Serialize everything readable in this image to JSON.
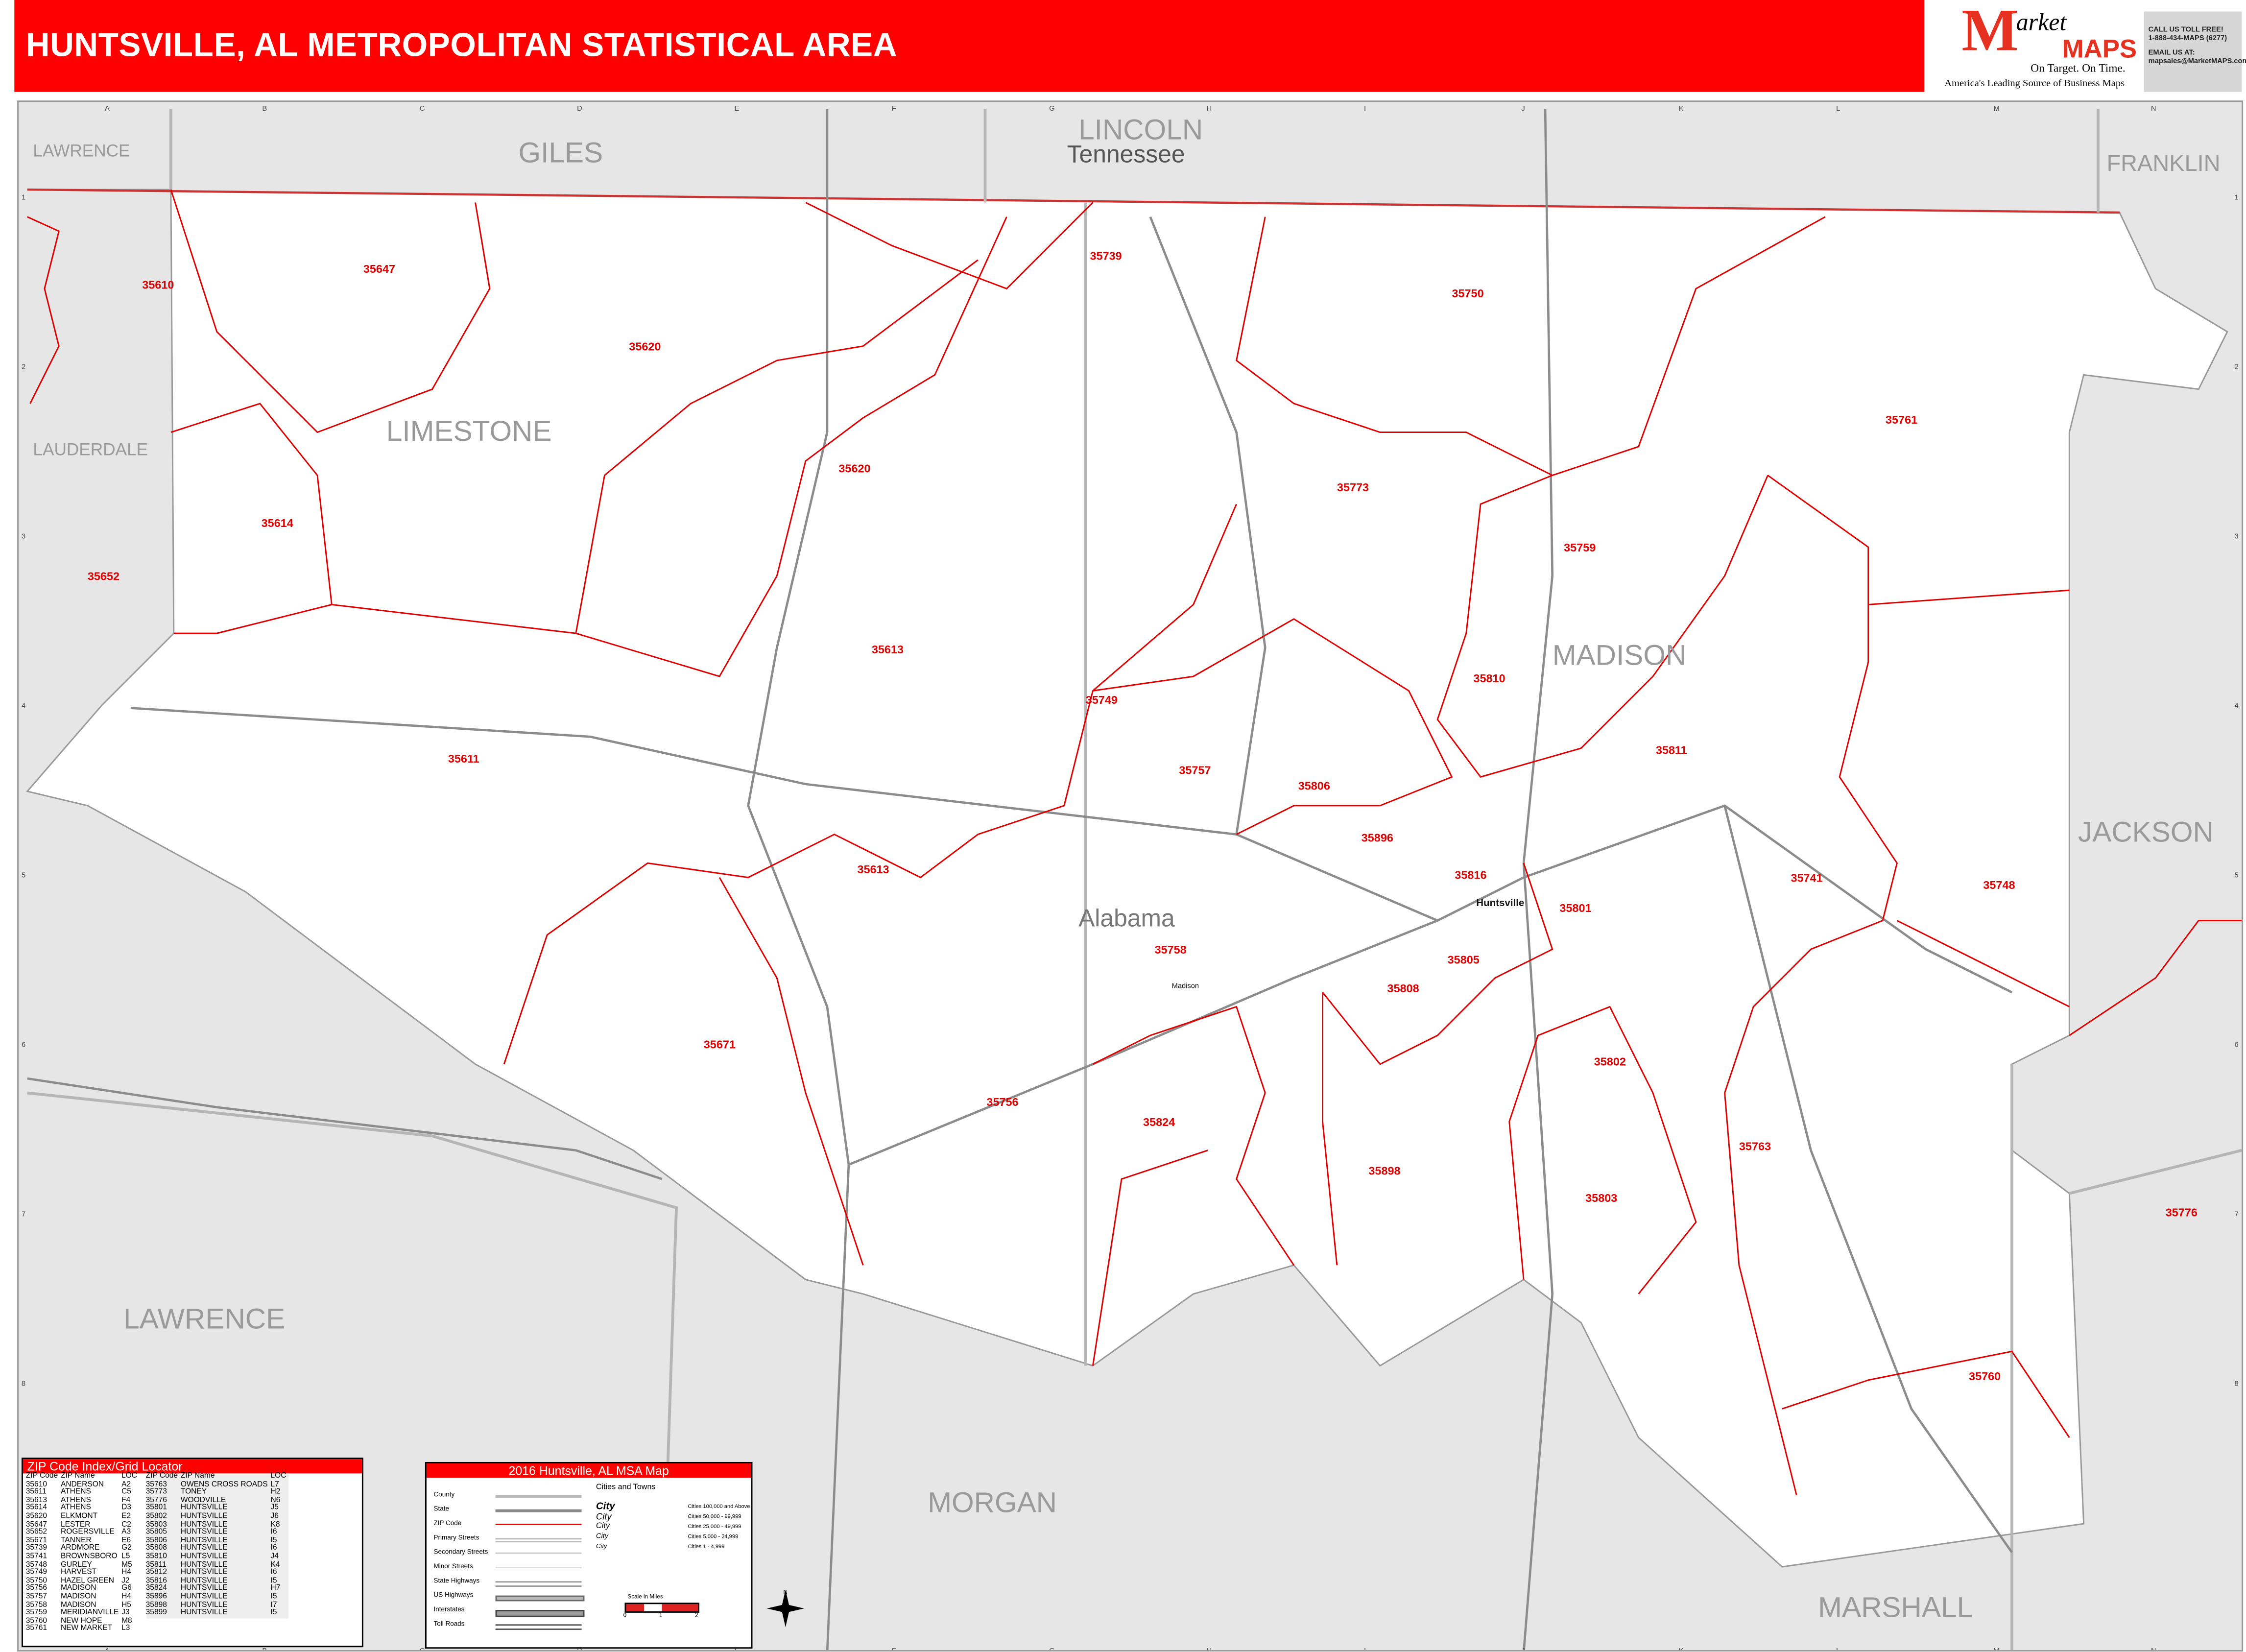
{
  "title": "HUNTSVILLE, AL METROPOLITAN STATISTICAL AREA",
  "logo": {
    "brand_letter": "M",
    "brand_rest": "arket",
    "brand_maps": "MAPS",
    "tagline": "On Target.  On Time.",
    "slogan": "America's Leading Source of  Business Maps"
  },
  "contact": {
    "line1": "CALL US TOLL FREE!",
    "line2": "1-888-434-MAPS (6277)",
    "line3": "EMAIL US AT:",
    "line4": "mapsales@MarketMAPS.com"
  },
  "colors": {
    "accent": "#ff0000",
    "zip_boundary": "#e00000",
    "outside_area": "#e6e6e6",
    "map_area": "#ffffff"
  },
  "map": {
    "counties": [
      "LAWRENCE",
      "GILES",
      "LINCOLN",
      "FRANKLIN",
      "LIMESTONE",
      "LAUDERDALE",
      "MADISON",
      "JACKSON",
      "LAWRENCE",
      "MORGAN",
      "MARSHALL"
    ],
    "states": [
      "Tennessee",
      "Alabama"
    ],
    "cities": [
      "Huntsville",
      "Madison"
    ],
    "zip_labels": [
      "35610",
      "35647",
      "35620",
      "35620",
      "35614",
      "35652",
      "35611",
      "35613",
      "35739",
      "35750",
      "35761",
      "35773",
      "35759",
      "35810",
      "35811",
      "35749",
      "35757",
      "35806",
      "35896",
      "35816",
      "35801",
      "35805",
      "35808",
      "35758",
      "35741",
      "35748",
      "35671",
      "35756",
      "35824",
      "35898",
      "35802",
      "35763",
      "35803",
      "35776",
      "35760",
      "35613"
    ],
    "grid_columns": [
      "A",
      "B",
      "C",
      "D",
      "E",
      "F",
      "G",
      "H",
      "I",
      "J",
      "K",
      "L",
      "M",
      "N"
    ],
    "grid_rows": [
      "1",
      "2",
      "3",
      "4",
      "5",
      "6",
      "7",
      "8"
    ]
  },
  "zip_index": {
    "title": "ZIP Code Index/Grid Locator",
    "headers": [
      "ZIP Code",
      "ZIP Name",
      "LOC"
    ],
    "left": [
      [
        "35610",
        "ANDERSON",
        "A2"
      ],
      [
        "35611",
        "ATHENS",
        "C5"
      ],
      [
        "35613",
        "ATHENS",
        "F4"
      ],
      [
        "35614",
        "ATHENS",
        "D3"
      ],
      [
        "35620",
        "ELKMONT",
        "E2"
      ],
      [
        "35647",
        "LESTER",
        "C2"
      ],
      [
        "35652",
        "ROGERSVILLE",
        "A3"
      ],
      [
        "35671",
        "TANNER",
        "E6"
      ],
      [
        "35739",
        "ARDMORE",
        "G2"
      ],
      [
        "35741",
        "BROWNSBORO",
        "L5"
      ],
      [
        "35748",
        "GURLEY",
        "M5"
      ],
      [
        "35749",
        "HARVEST",
        "H4"
      ],
      [
        "35750",
        "HAZEL GREEN",
        "J2"
      ],
      [
        "35756",
        "MADISON",
        "G6"
      ],
      [
        "35757",
        "MADISON",
        "H4"
      ],
      [
        "35758",
        "MADISON",
        "H5"
      ],
      [
        "35759",
        "MERIDIANVILLE",
        "J3"
      ],
      [
        "35760",
        "NEW HOPE",
        "M8"
      ],
      [
        "35761",
        "NEW MARKET",
        "L3"
      ]
    ],
    "right": [
      [
        "35763",
        "OWENS CROSS ROADS",
        "L7"
      ],
      [
        "35773",
        "TONEY",
        "H2"
      ],
      [
        "35776",
        "WOODVILLE",
        "N6"
      ],
      [
        "35801",
        "HUNTSVILLE",
        "J5"
      ],
      [
        "35802",
        "HUNTSVILLE",
        "J6"
      ],
      [
        "35803",
        "HUNTSVILLE",
        "K8"
      ],
      [
        "35805",
        "HUNTSVILLE",
        "I6"
      ],
      [
        "35806",
        "HUNTSVILLE",
        "I5"
      ],
      [
        "35808",
        "HUNTSVILLE",
        "I6"
      ],
      [
        "35810",
        "HUNTSVILLE",
        "J4"
      ],
      [
        "35811",
        "HUNTSVILLE",
        "K4"
      ],
      [
        "35812",
        "HUNTSVILLE",
        "I6"
      ],
      [
        "35816",
        "HUNTSVILLE",
        "I5"
      ],
      [
        "35824",
        "HUNTSVILLE",
        "H7"
      ],
      [
        "35896",
        "HUNTSVILLE",
        "I5"
      ],
      [
        "35898",
        "HUNTSVILLE",
        "I7"
      ],
      [
        "35899",
        "HUNTSVILLE",
        "I5"
      ]
    ]
  },
  "legend": {
    "title": "2016 Huntsville, AL MSA Map",
    "lines": [
      "County",
      "State",
      "ZIP Code",
      "Primary Streets",
      "Secondary Streets",
      "Minor Streets",
      "State Highways",
      "US Highways",
      "Interstates",
      "Toll Roads"
    ],
    "shield_number": "123",
    "cities_title": "Cities and Towns",
    "city_word": "City",
    "city_classes": [
      "Cities 100,000 and Above",
      "Cities 50,000 - 99,999",
      "Cities 25,000 - 49,999",
      "Cities 5,000 - 24,999",
      "Cities 1 - 4,999"
    ],
    "scale_title": "Scale in Miles",
    "scale_ticks": [
      "0",
      "1",
      "2"
    ]
  }
}
